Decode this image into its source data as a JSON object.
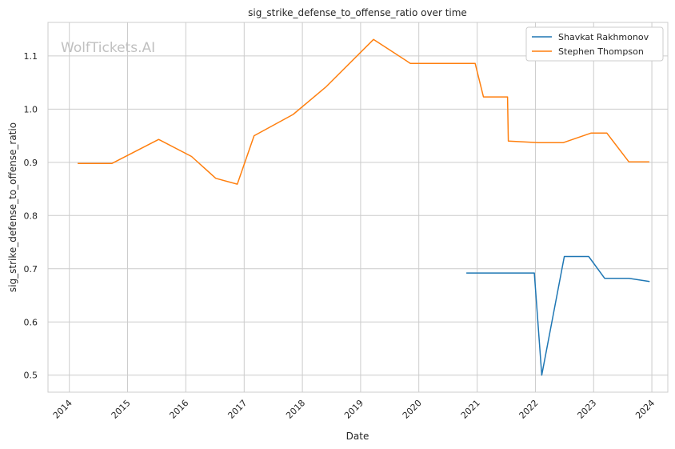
{
  "chart_data": {
    "type": "line",
    "title": "sig_strike_defense_to_offense_ratio over time",
    "xlabel": "Date",
    "ylabel": "sig_strike_defense_to_offense_ratio",
    "watermark": "WolfTickets.AI",
    "x_ticks": [
      "2014",
      "2015",
      "2016",
      "2017",
      "2018",
      "2019",
      "2020",
      "2021",
      "2022",
      "2023",
      "2024"
    ],
    "y_ticks": [
      "0.5",
      "0.6",
      "0.7",
      "0.8",
      "0.9",
      "1.0",
      "1.1"
    ],
    "xlim": [
      "2013-08-20",
      "2024-04-10"
    ],
    "ylim": [
      0.468,
      1.163
    ],
    "grid": true,
    "legend_position": "top-right",
    "series": [
      {
        "name": "Shavkat Rakhmonov",
        "color": "#1f77b4",
        "points": [
          [
            "2020-10-25",
            0.692
          ],
          [
            "2021-12-25",
            0.692
          ],
          [
            "2022-02-10",
            0.5
          ],
          [
            "2022-07-01",
            0.723
          ],
          [
            "2022-12-01",
            0.723
          ],
          [
            "2023-03-11",
            0.682
          ],
          [
            "2023-08-10",
            0.682
          ],
          [
            "2023-12-18",
            0.676
          ]
        ]
      },
      {
        "name": "Stephen Thompson",
        "color": "#ff7f0e",
        "points": [
          [
            "2014-02-22",
            0.898
          ],
          [
            "2014-09-25",
            0.898
          ],
          [
            "2015-07-15",
            0.943
          ],
          [
            "2016-02-06",
            0.911
          ],
          [
            "2016-07-07",
            0.87
          ],
          [
            "2016-11-19",
            0.859
          ],
          [
            "2017-03-04",
            0.95
          ],
          [
            "2017-11-04",
            0.99
          ],
          [
            "2018-05-26",
            1.041
          ],
          [
            "2019-03-23",
            1.131
          ],
          [
            "2019-11-09",
            1.086
          ],
          [
            "2020-12-19",
            1.086
          ],
          [
            "2021-02-09",
            1.023
          ],
          [
            "2021-07-10",
            1.023
          ],
          [
            "2021-07-15",
            0.94
          ],
          [
            "2022-01-20",
            0.937
          ],
          [
            "2022-06-25",
            0.937
          ],
          [
            "2022-12-15",
            0.955
          ],
          [
            "2023-03-25",
            0.955
          ],
          [
            "2023-08-10",
            0.901
          ],
          [
            "2023-12-16",
            0.901
          ]
        ]
      }
    ]
  }
}
